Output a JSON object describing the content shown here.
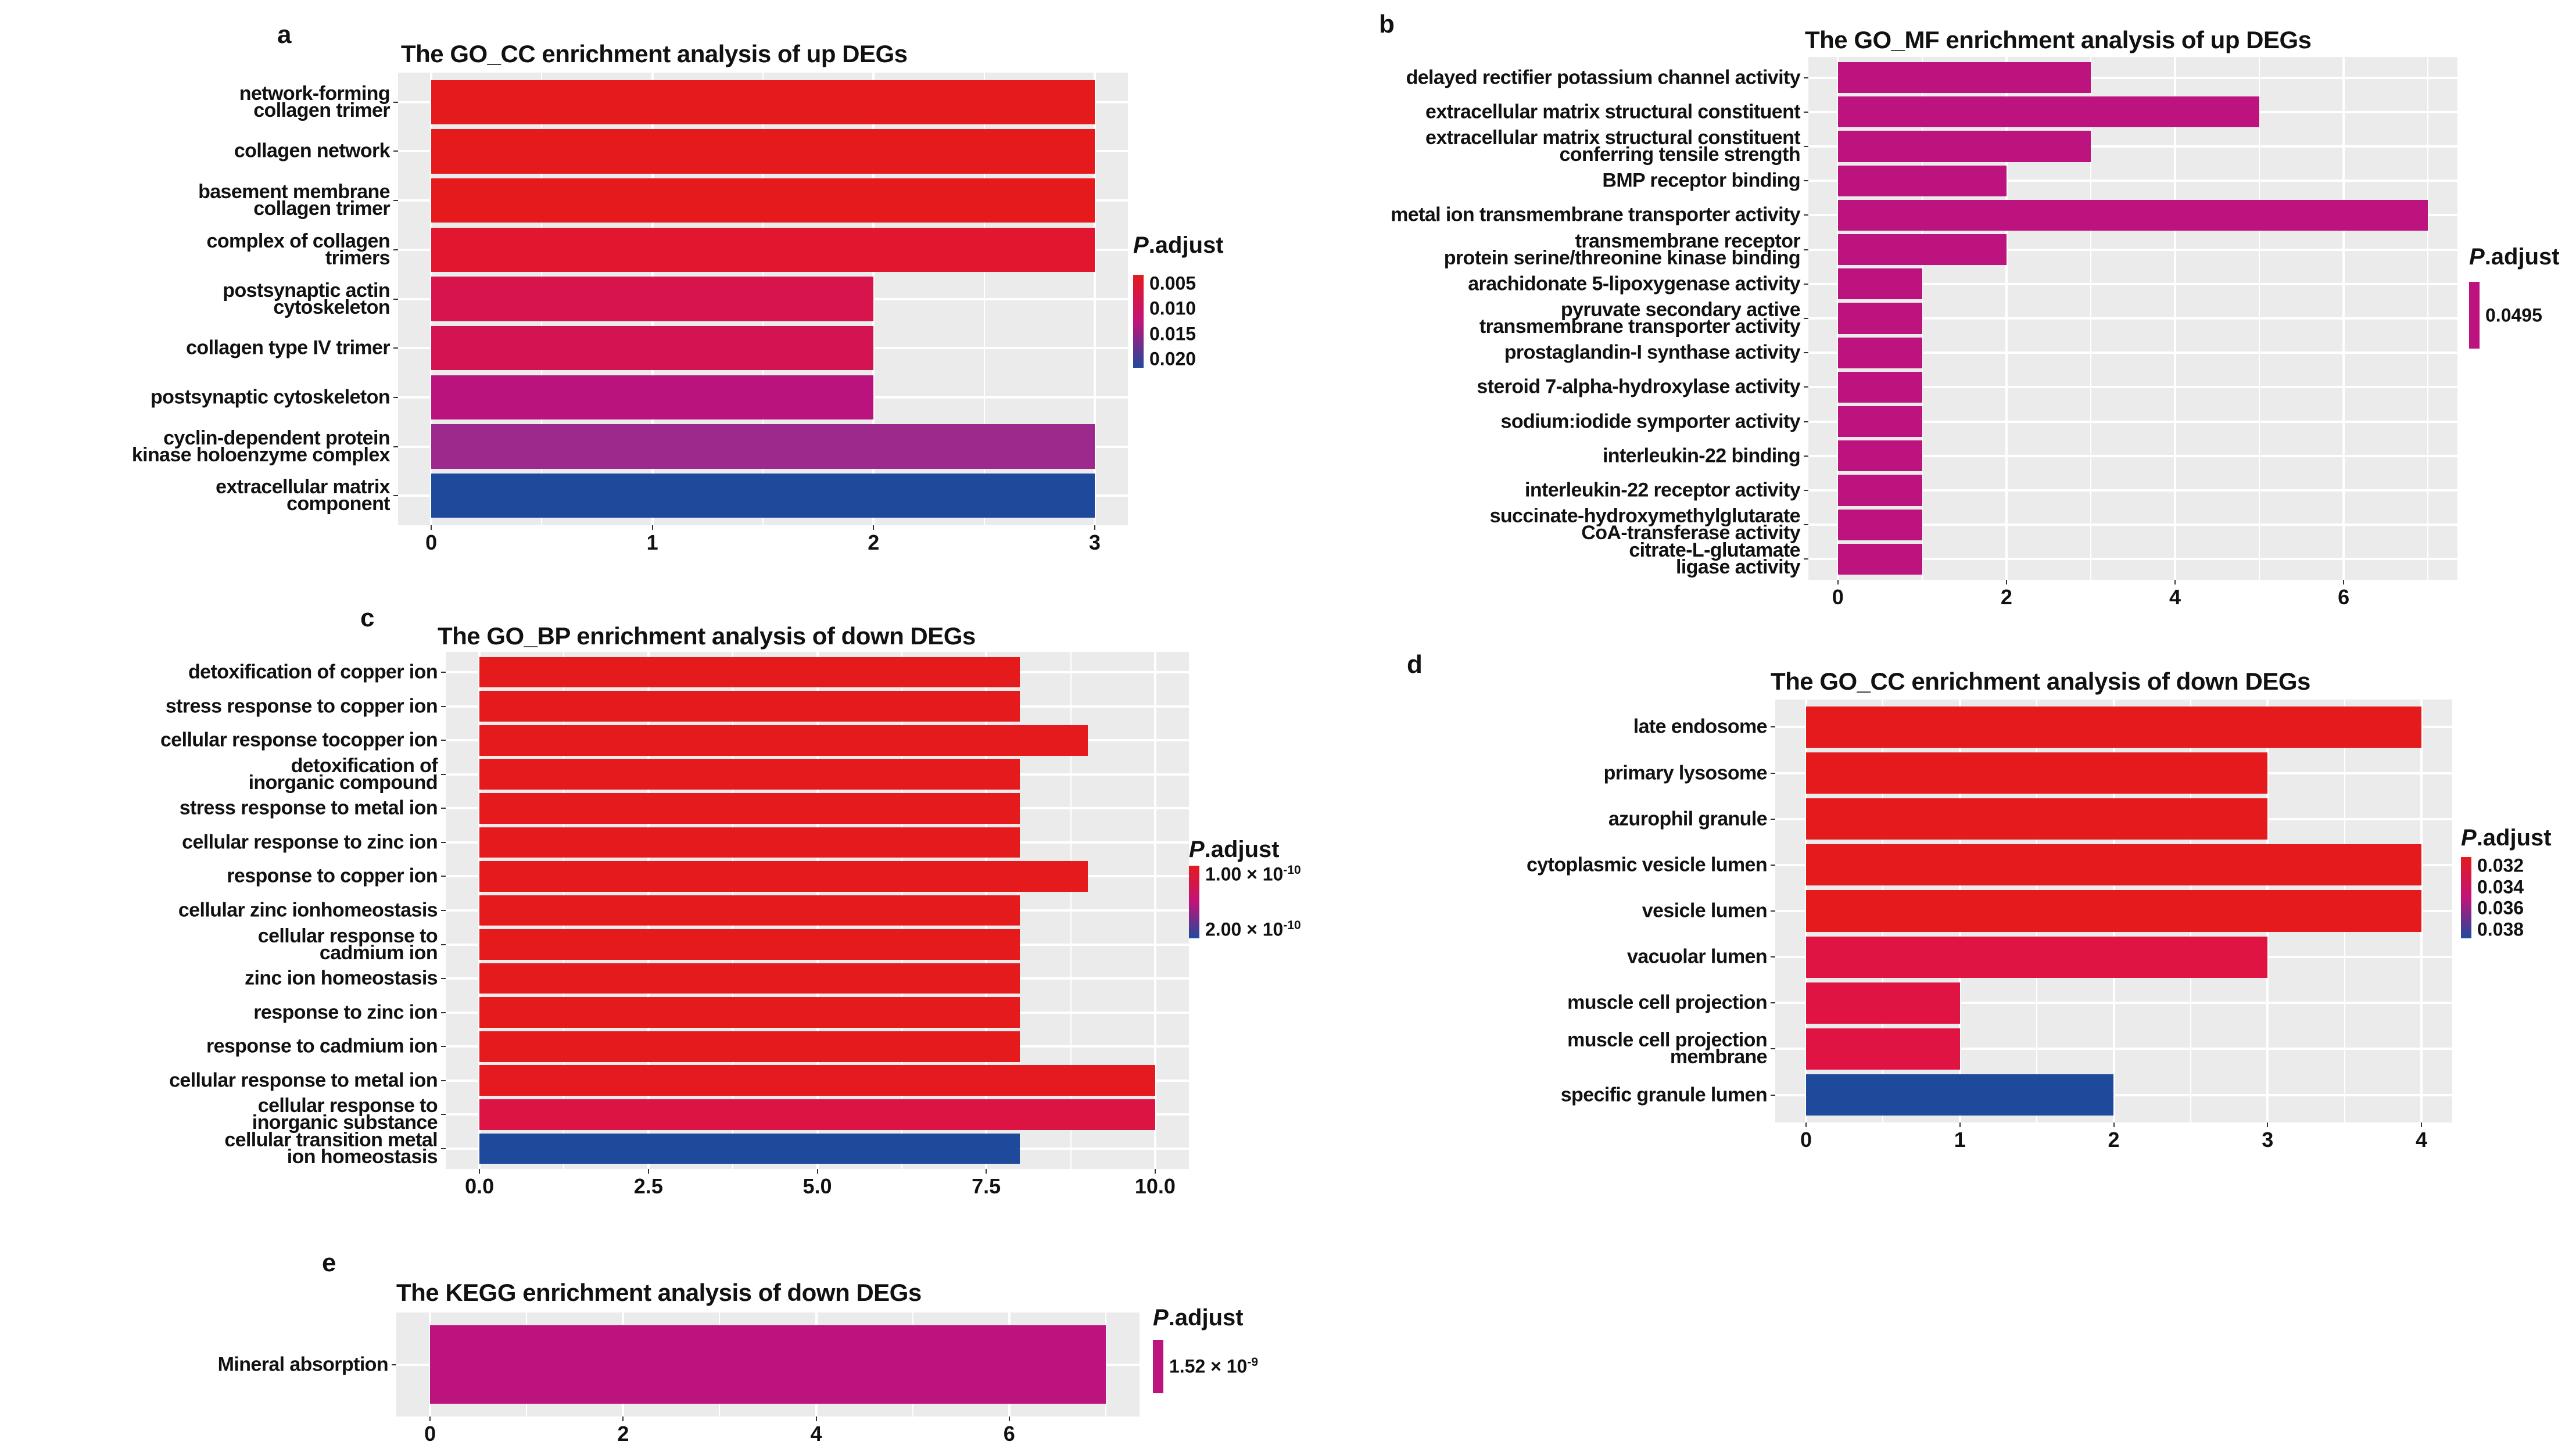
{
  "chart_data": [
    {
      "type": "bar",
      "orientation": "horizontal",
      "panel": "a",
      "title": "The GO_CC enrichment analysis of up DEGs",
      "categories": [
        "network-forming\ncollagen trimer",
        "collagen network",
        "basement membrane\ncollagen trimer",
        "complex of collagen\ntrimers",
        "postsynaptic actin\ncytoskeleton",
        "collagen type IV trimer",
        "postsynaptic cytoskeleton",
        "cyclin-dependent protein\nkinase holoenzyme complex",
        "extracellular matrix\ncomponent"
      ],
      "values": [
        3,
        3,
        3,
        3,
        2,
        2,
        2,
        3,
        3
      ],
      "colors": [
        "#e41a1c",
        "#e41a1c",
        "#e41a1c",
        "#e3162f",
        "#d8144d",
        "#d41352",
        "#bb137e",
        "#9b2a8c",
        "#1f4a9c"
      ],
      "xticks": [
        0,
        1,
        2,
        3
      ],
      "xtick_labels": [
        "0",
        "1",
        "2",
        "3"
      ],
      "xlim": [
        -0.15,
        3.15
      ],
      "legend": {
        "title_italic": "P",
        "title_rest": ".adjust",
        "labels": [
          {
            "base": "0.005"
          },
          {
            "base": "0.010"
          },
          {
            "base": "0.015"
          },
          {
            "base": "0.020"
          }
        ],
        "gradient": [
          "#e41a1c",
          "#c2137a",
          "#1f4a9c"
        ]
      }
    },
    {
      "type": "bar",
      "orientation": "horizontal",
      "panel": "b",
      "title": "The GO_MF enrichment analysis of up DEGs",
      "categories": [
        "delayed rectifier potassium channel activity",
        "extracellular matrix structural constituent",
        "extracellular matrix structural constituent\nconferring tensile strength",
        "BMP receptor binding",
        "metal ion transmembrane transporter activity",
        "transmembrane receptor\nprotein serine/threonine kinase binding",
        "arachidonate 5-lipoxygenase activity",
        "pyruvate secondary active\ntransmembrane transporter activity",
        "prostaglandin-I synthase activity",
        "steroid 7-alpha-hydroxylase activity",
        "sodium:iodide symporter activity",
        "interleukin-22 binding",
        "interleukin-22 receptor activity",
        "succinate-hydroxymethylglutarate\nCoA-transferase activity",
        "citrate-L-glutamate\nligase activity"
      ],
      "values": [
        3,
        5,
        3,
        2,
        7,
        2,
        1,
        1,
        1,
        1,
        1,
        1,
        1,
        1,
        1
      ],
      "colors": [
        "#bc137e",
        "#bc137e",
        "#bc137e",
        "#bc137e",
        "#bc137e",
        "#bc137e",
        "#bc137e",
        "#bc137e",
        "#bc137e",
        "#bc137e",
        "#bc137e",
        "#bc137e",
        "#bc137e",
        "#bc137e",
        "#bc137e"
      ],
      "xticks": [
        0,
        2,
        4,
        6
      ],
      "xtick_labels": [
        "0",
        "2",
        "4",
        "6"
      ],
      "xlim": [
        -0.35,
        7.35
      ],
      "legend": {
        "title_italic": "P",
        "title_rest": ".adjust",
        "labels": [
          {
            "base": "0.0495"
          }
        ],
        "gradient": [
          "#bc137e",
          "#bc137e"
        ]
      }
    },
    {
      "type": "bar",
      "orientation": "horizontal",
      "panel": "c",
      "title": "The GO_BP enrichment analysis of down DEGs",
      "categories": [
        "detoxification of copper  ion",
        "stress response to copper ion",
        "cellular response tocopper ion",
        "detoxification of\ninorganic compound",
        "stress response to metal  ion",
        "cellular response to zinc ion",
        "response to copper ion",
        "cellular zinc ionhomeostasis",
        "cellular response to\ncadmium ion",
        "zinc ion homeostasis",
        "response to zinc ion",
        "response to cadmium ion",
        "cellular response to  metal ion",
        "cellular response to\ninorganic substance",
        "cellular transition metal\nion homeostasis"
      ],
      "values": [
        8,
        8,
        9,
        8,
        8,
        8,
        9,
        8,
        8,
        8,
        8,
        8,
        10,
        10,
        8
      ],
      "colors": [
        "#e41a1c",
        "#e41a1c",
        "#e41a1c",
        "#e41a1c",
        "#e41a1c",
        "#e41a1c",
        "#e41a1c",
        "#e41a1c",
        "#e41a1c",
        "#e41a1c",
        "#e41a1c",
        "#e41a1c",
        "#e41a1e",
        "#dc1444",
        "#1f4a9c"
      ],
      "xticks": [
        0,
        2.5,
        5,
        7.5,
        10
      ],
      "xtick_labels": [
        "0.0",
        "2.5",
        "5.0",
        "7.5",
        "10.0"
      ],
      "xlim": [
        -0.5,
        10.5
      ],
      "legend": {
        "title_italic": "P",
        "title_rest": ".adjust",
        "labels": [
          {
            "base": "1.00 × 10",
            "exp": "-10"
          },
          {
            "base": "2.00 × 10",
            "exp": "-10"
          }
        ],
        "gradient": [
          "#e41a1c",
          "#c2137a",
          "#1f4a9c"
        ]
      }
    },
    {
      "type": "bar",
      "orientation": "horizontal",
      "panel": "d",
      "title": "The GO_CC enrichment analysis of down DEGs",
      "categories": [
        "late endosome",
        "primary lysosome",
        "azurophil granule",
        "cytoplasmic vesicle lumen",
        "vesicle lumen",
        "vacuolar lumen",
        "muscle cell projection",
        "muscle cell projection\nmembrane",
        "specific granule lumen"
      ],
      "values": [
        4,
        3,
        3,
        4,
        4,
        3,
        1,
        1,
        2
      ],
      "colors": [
        "#e41a1c",
        "#e41a1c",
        "#e41a1c",
        "#e41a1c",
        "#e41a1c",
        "#df1443",
        "#df1443",
        "#df1443",
        "#1f4a9c"
      ],
      "xticks": [
        0,
        1,
        2,
        3,
        4
      ],
      "xtick_labels": [
        "0",
        "1",
        "2",
        "3",
        "4"
      ],
      "xlim": [
        -0.2,
        4.2
      ],
      "legend": {
        "title_italic": "P",
        "title_rest": ".adjust",
        "labels": [
          {
            "base": "0.032"
          },
          {
            "base": "0.034"
          },
          {
            "base": "0.036"
          },
          {
            "base": "0.038"
          }
        ],
        "gradient": [
          "#e41a1c",
          "#c2137a",
          "#1f4a9c"
        ]
      }
    },
    {
      "type": "bar",
      "orientation": "horizontal",
      "panel": "e",
      "title": "The KEGG enrichment analysis of down DEGs",
      "categories": [
        "Mineral absorption"
      ],
      "values": [
        7
      ],
      "colors": [
        "#bc137e"
      ],
      "xticks": [
        0,
        2,
        4,
        6
      ],
      "xtick_labels": [
        "0",
        "2",
        "4",
        "6"
      ],
      "xlim": [
        -0.35,
        7.35
      ],
      "legend": {
        "title_italic": "P",
        "title_rest": ".adjust",
        "labels": [
          {
            "base": "1.52 × 10",
            "exp": "-9"
          }
        ],
        "gradient": [
          "#bc137e",
          "#bc137e"
        ]
      }
    }
  ]
}
